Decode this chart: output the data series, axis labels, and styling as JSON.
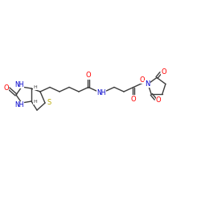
{
  "background_color": "#ffffff",
  "bond_color": "#3d3d3d",
  "figsize": [
    2.5,
    2.5
  ],
  "dpi": 100,
  "colors": {
    "O": "#ff0000",
    "N": "#0000cc",
    "S": "#b8a800",
    "C": "#3d3d3d"
  },
  "lw": 1.0,
  "fs": 5.5,
  "xlim": [
    0,
    250
  ],
  "ylim": [
    0,
    250
  ]
}
